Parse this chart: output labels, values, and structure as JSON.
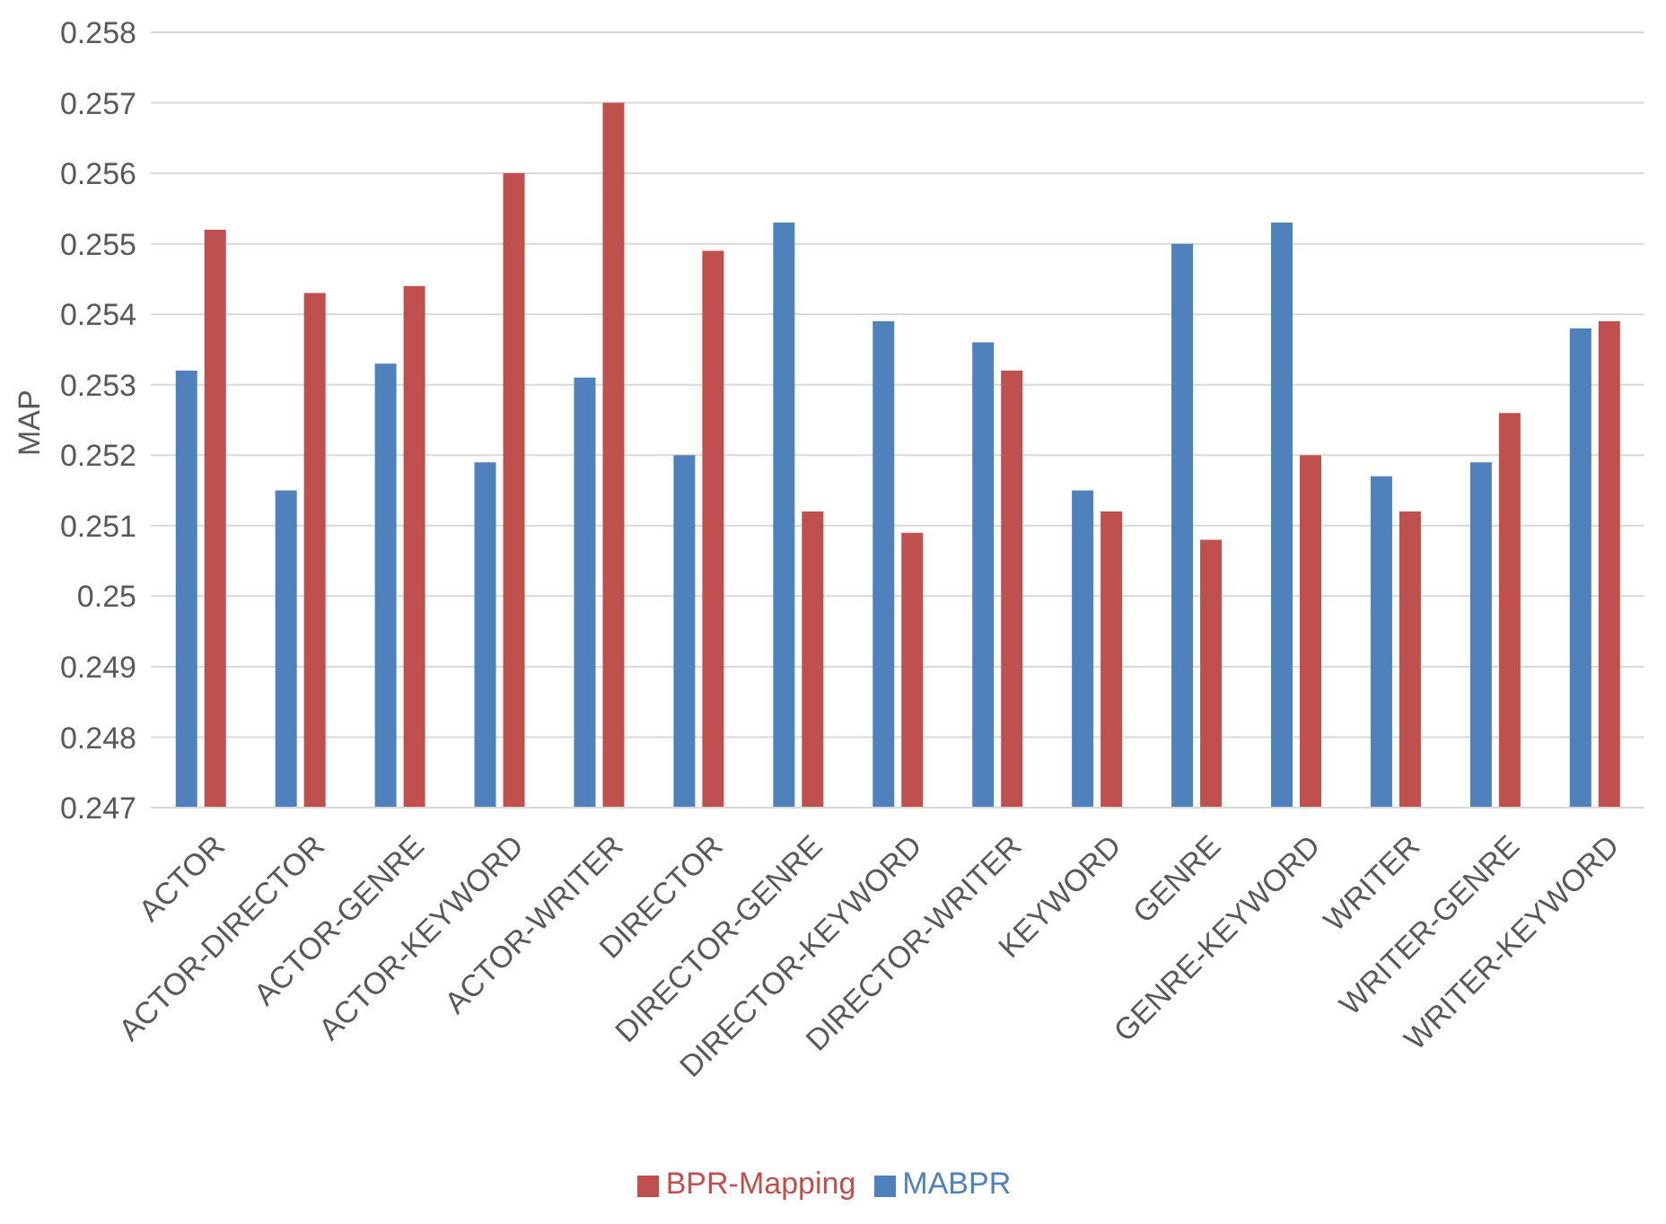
{
  "chart_data": {
    "type": "bar",
    "ylabel": "MAP",
    "categories": [
      "ACTOR",
      "ACTOR-DIRECTOR",
      "ACTOR-GENRE",
      "ACTOR-KEYWORD",
      "ACTOR-WRITER",
      "DIRECTOR",
      "DIRECTOR-GENRE",
      "DIRECTOR-KEYWORD",
      "DIRECTOR-WRITER",
      "KEYWORD",
      "GENRE",
      "GENRE-KEYWORD",
      "WRITER",
      "WRITER-GENRE",
      "WRITER-KEYWORD"
    ],
    "series": [
      {
        "name": "MABPR",
        "color": "#4f81bd",
        "values": [
          0.2532,
          0.2515,
          0.2533,
          0.2519,
          0.2531,
          0.252,
          0.2553,
          0.2539,
          0.2536,
          0.2515,
          0.255,
          0.2553,
          0.2517,
          0.2519,
          0.2538
        ]
      },
      {
        "name": "BPR-Mapping",
        "color": "#c0504d",
        "values": [
          0.2552,
          0.2543,
          0.2544,
          0.256,
          0.257,
          0.2549,
          0.2512,
          0.2509,
          0.2532,
          0.2512,
          0.2508,
          0.252,
          0.2512,
          0.2526,
          0.2539
        ]
      }
    ],
    "ylim": [
      0.247,
      0.258
    ],
    "yticks": [
      0.247,
      0.248,
      0.249,
      0.25,
      0.251,
      0.252,
      0.253,
      0.254,
      0.255,
      0.256,
      0.257,
      0.258
    ],
    "grid": "y",
    "legend": "bottom"
  }
}
